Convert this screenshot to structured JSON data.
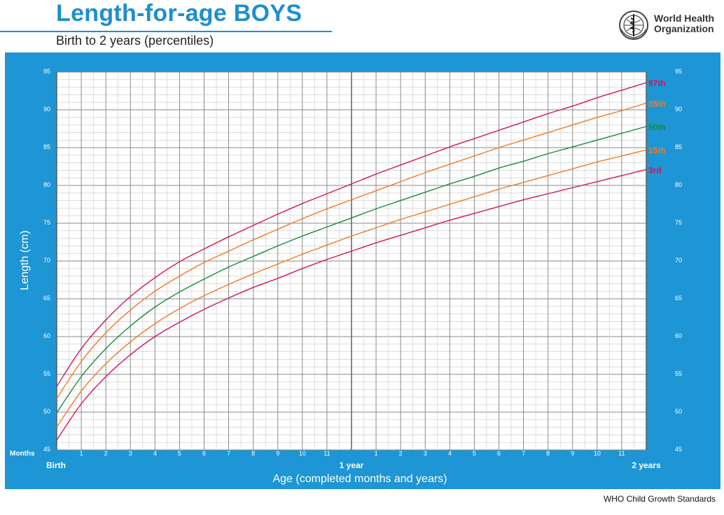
{
  "header": {
    "title": "Length-for-age BOYS",
    "subtitle": "Birth to 2 years (percentiles)"
  },
  "org": {
    "line1": "World Health",
    "line2": "Organization",
    "logo_icon": "who-emblem-icon"
  },
  "footer": {
    "text": "WHO Child Growth Standards"
  },
  "colors": {
    "panel": "#1e95d4",
    "p97": "#d4145a",
    "p85": "#f07a22",
    "p50": "#1a8a3a",
    "p15": "#f07a22",
    "p3": "#d4145a",
    "grid_major": "#8a8a8a",
    "grid_minor": "#c8c8c8"
  },
  "chart_data": {
    "type": "line",
    "title": "Length-for-age BOYS",
    "subtitle": "Birth to 2 years (percentiles)",
    "xlabel": "Age (completed months and years)",
    "ylabel": "Length (cm)",
    "xlim": [
      0,
      24
    ],
    "ylim": [
      45,
      95
    ],
    "grid": true,
    "x_unit_label": "Months",
    "x_tick_labels": [
      "1",
      "2",
      "3",
      "4",
      "5",
      "6",
      "7",
      "8",
      "9",
      "10",
      "11",
      "1",
      "2",
      "3",
      "4",
      "5",
      "6",
      "7",
      "8",
      "9",
      "10",
      "11"
    ],
    "x_major_labels": [
      "Birth",
      "1 year",
      "2 years"
    ],
    "y_ticks": [
      45,
      50,
      55,
      60,
      65,
      70,
      75,
      80,
      85,
      90,
      95
    ],
    "x": [
      0,
      1,
      2,
      3,
      4,
      5,
      6,
      7,
      8,
      9,
      10,
      11,
      12,
      13,
      14,
      15,
      16,
      17,
      18,
      19,
      20,
      21,
      22,
      23,
      24
    ],
    "series": [
      {
        "name": "97th",
        "color_key": "p97",
        "values": [
          53.4,
          58.4,
          62.2,
          65.3,
          67.8,
          69.9,
          71.6,
          73.2,
          74.7,
          76.2,
          77.6,
          78.9,
          80.2,
          81.5,
          82.7,
          83.9,
          85.1,
          86.2,
          87.3,
          88.4,
          89.5,
          90.5,
          91.6,
          92.6,
          93.6
        ]
      },
      {
        "name": "85th",
        "color_key": "p85",
        "values": [
          51.8,
          56.7,
          60.5,
          63.5,
          66.0,
          68.0,
          69.8,
          71.3,
          72.8,
          74.2,
          75.6,
          76.9,
          78.1,
          79.3,
          80.5,
          81.7,
          82.8,
          83.9,
          85.0,
          86.0,
          87.0,
          88.0,
          89.0,
          89.9,
          90.9
        ]
      },
      {
        "name": "50th",
        "color_key": "p50",
        "values": [
          49.9,
          54.7,
          58.4,
          61.4,
          63.9,
          65.9,
          67.6,
          69.2,
          70.6,
          72.0,
          73.3,
          74.5,
          75.7,
          76.9,
          78.0,
          79.1,
          80.2,
          81.2,
          82.3,
          83.2,
          84.2,
          85.1,
          86.0,
          86.9,
          87.8
        ]
      },
      {
        "name": "15th",
        "color_key": "p15",
        "values": [
          48.0,
          52.8,
          56.4,
          59.3,
          61.7,
          63.7,
          65.4,
          66.9,
          68.3,
          69.6,
          70.9,
          72.1,
          73.3,
          74.4,
          75.5,
          76.5,
          77.5,
          78.5,
          79.5,
          80.4,
          81.3,
          82.2,
          83.1,
          83.9,
          84.7
        ]
      },
      {
        "name": "3rd",
        "color_key": "p3",
        "values": [
          46.3,
          51.1,
          54.7,
          57.6,
          60.0,
          61.9,
          63.6,
          65.1,
          66.5,
          67.7,
          69.0,
          70.2,
          71.3,
          72.4,
          73.4,
          74.4,
          75.4,
          76.3,
          77.2,
          78.1,
          78.9,
          79.7,
          80.5,
          81.3,
          82.1
        ]
      }
    ]
  }
}
